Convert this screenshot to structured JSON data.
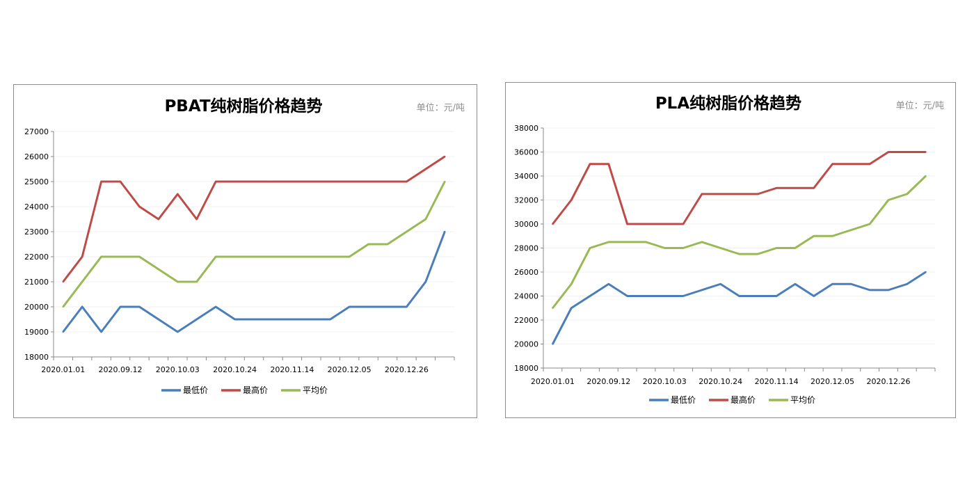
{
  "chart_data": [
    {
      "type": "line",
      "title": "PBAT纯树脂价格趋势",
      "unit_label": "单位：元/吨",
      "x_tick_labels": [
        "2020.01.01",
        "",
        "",
        "2020.09.12",
        "",
        "",
        "2020.10.03",
        "",
        "",
        "2020.10.24",
        "",
        "",
        "2020.11.14",
        "",
        "",
        "2020.12.05",
        "",
        "",
        "2020.12.26",
        "",
        ""
      ],
      "ylim": [
        18000,
        27000
      ],
      "y_ticks": [
        18000,
        19000,
        20000,
        21000,
        22000,
        23000,
        24000,
        25000,
        26000,
        27000
      ],
      "grid": true,
      "legend_position": "bottom",
      "series": [
        {
          "name": "最低价",
          "color": "#4a7ebb",
          "values": [
            19000,
            20000,
            19000,
            20000,
            20000,
            19500,
            19000,
            19500,
            20000,
            19500,
            19500,
            19500,
            19500,
            19500,
            19500,
            20000,
            20000,
            20000,
            20000,
            21000,
            23000
          ]
        },
        {
          "name": "最高价",
          "color": "#be4b48",
          "values": [
            21000,
            22000,
            25000,
            25000,
            24000,
            23500,
            24500,
            23500,
            25000,
            25000,
            25000,
            25000,
            25000,
            25000,
            25000,
            25000,
            25000,
            25000,
            25000,
            25500,
            26000
          ]
        },
        {
          "name": "平均价",
          "color": "#98b954",
          "values": [
            20000,
            21000,
            22000,
            22000,
            22000,
            21500,
            21000,
            21000,
            22000,
            22000,
            22000,
            22000,
            22000,
            22000,
            22000,
            22000,
            22500,
            22500,
            23000,
            23500,
            25000
          ]
        }
      ]
    },
    {
      "type": "line",
      "title": "PLA纯树脂价格趋势",
      "unit_label": "单位：元/吨",
      "x_tick_labels": [
        "2020.01.01",
        "",
        "",
        "2020.09.12",
        "",
        "",
        "2020.10.03",
        "",
        "",
        "2020.10.24",
        "",
        "",
        "2020.11.14",
        "",
        "",
        "2020.12.05",
        "",
        "",
        "2020.12.26",
        "",
        ""
      ],
      "ylim": [
        18000,
        38000
      ],
      "y_ticks": [
        18000,
        20000,
        22000,
        24000,
        26000,
        28000,
        30000,
        32000,
        34000,
        36000,
        38000
      ],
      "grid": true,
      "legend_position": "bottom",
      "series": [
        {
          "name": "最低价",
          "color": "#4a7ebb",
          "values": [
            20000,
            23000,
            24000,
            25000,
            24000,
            24000,
            24000,
            24000,
            24500,
            25000,
            24000,
            24000,
            24000,
            25000,
            24000,
            25000,
            25000,
            24500,
            24500,
            25000,
            26000
          ]
        },
        {
          "name": "最高价",
          "color": "#be4b48",
          "values": [
            30000,
            32000,
            35000,
            35000,
            30000,
            30000,
            30000,
            30000,
            32500,
            32500,
            32500,
            32500,
            33000,
            33000,
            33000,
            35000,
            35000,
            35000,
            36000,
            36000,
            36000
          ]
        },
        {
          "name": "平均价",
          "color": "#98b954",
          "values": [
            23000,
            25000,
            28000,
            28500,
            28500,
            28500,
            28000,
            28000,
            28500,
            28000,
            27500,
            27500,
            28000,
            28000,
            29000,
            29000,
            29500,
            30000,
            32000,
            32500,
            34000
          ]
        }
      ]
    }
  ]
}
